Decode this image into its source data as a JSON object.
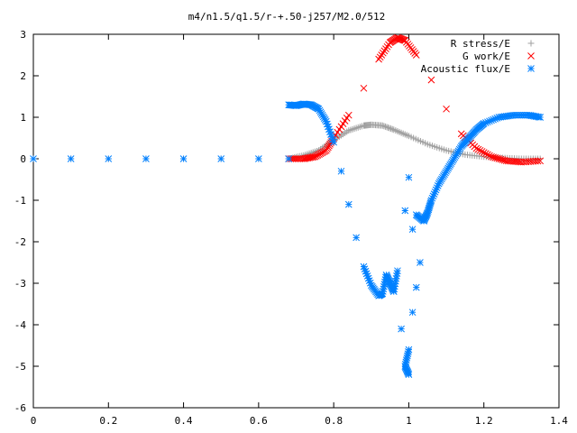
{
  "chart_data": {
    "type": "scatter",
    "title": "m4/n1.5/q1.5/r-+.50-j257/M2.0/512",
    "xlabel": "",
    "ylabel": "",
    "xlim": [
      0,
      1.4
    ],
    "ylim": [
      -6,
      3
    ],
    "grid": false,
    "legend_position": "top-right",
    "x_ticks": [
      "0",
      "0.2",
      "0.4",
      "0.6",
      "0.8",
      "1",
      "1.2",
      "1.4"
    ],
    "y_ticks": [
      "-6",
      "-5",
      "-4",
      "-3",
      "-2",
      "-1",
      "0",
      "1",
      "2",
      "3"
    ],
    "series": [
      {
        "name": "R stress/E",
        "marker": "+",
        "color": "#a0a0a0",
        "points": [
          [
            0.0,
            0
          ],
          [
            0.1,
            0
          ],
          [
            0.2,
            0
          ],
          [
            0.3,
            0
          ],
          [
            0.4,
            0
          ],
          [
            0.5,
            0
          ],
          [
            0.6,
            0
          ],
          [
            0.68,
            0.0
          ],
          [
            0.72,
            0.08
          ],
          [
            0.76,
            0.2
          ],
          [
            0.8,
            0.45
          ],
          [
            0.84,
            0.68
          ],
          [
            0.88,
            0.8
          ],
          [
            0.9,
            0.82
          ],
          [
            0.93,
            0.8
          ],
          [
            0.96,
            0.7
          ],
          [
            1.0,
            0.55
          ],
          [
            1.05,
            0.35
          ],
          [
            1.1,
            0.2
          ],
          [
            1.15,
            0.1
          ],
          [
            1.2,
            0.05
          ],
          [
            1.25,
            0.02
          ],
          [
            1.3,
            0.0
          ],
          [
            1.35,
            0.0
          ]
        ]
      },
      {
        "name": "G work/E",
        "marker": "x",
        "color": "#ff0000",
        "points": [
          [
            0.68,
            0.0
          ],
          [
            0.72,
            0.0
          ],
          [
            0.75,
            0.05
          ],
          [
            0.78,
            0.2
          ],
          [
            0.8,
            0.5
          ],
          [
            0.84,
            1.05
          ],
          [
            0.88,
            1.7
          ],
          [
            0.92,
            2.4
          ],
          [
            0.95,
            2.8
          ],
          [
            0.97,
            2.92
          ],
          [
            0.99,
            2.85
          ],
          [
            1.02,
            2.5
          ],
          [
            1.06,
            1.9
          ],
          [
            1.1,
            1.2
          ],
          [
            1.14,
            0.6
          ],
          [
            1.18,
            0.25
          ],
          [
            1.22,
            0.05
          ],
          [
            1.26,
            -0.05
          ],
          [
            1.3,
            -0.08
          ],
          [
            1.35,
            -0.05
          ]
        ]
      },
      {
        "name": "Acoustic flux/E",
        "marker": "*",
        "color": "#0080ff",
        "points": [
          [
            0.0,
            0
          ],
          [
            0.1,
            0
          ],
          [
            0.2,
            0
          ],
          [
            0.3,
            0
          ],
          [
            0.4,
            0
          ],
          [
            0.5,
            0
          ],
          [
            0.6,
            0
          ],
          [
            0.68,
            0.0
          ],
          [
            0.68,
            1.3
          ],
          [
            0.7,
            1.28
          ],
          [
            0.72,
            1.32
          ],
          [
            0.74,
            1.3
          ],
          [
            0.76,
            1.2
          ],
          [
            0.78,
            0.9
          ],
          [
            0.8,
            0.4
          ],
          [
            0.82,
            -0.3
          ],
          [
            0.84,
            -1.1
          ],
          [
            0.86,
            -1.9
          ],
          [
            0.88,
            -2.6
          ],
          [
            0.9,
            -3.05
          ],
          [
            0.92,
            -3.3
          ],
          [
            0.93,
            -3.25
          ],
          [
            0.94,
            -2.8
          ],
          [
            0.95,
            -3.0
          ],
          [
            0.96,
            -3.2
          ],
          [
            0.97,
            -2.7
          ],
          [
            0.98,
            -4.1
          ],
          [
            0.99,
            -1.25
          ],
          [
            1.0,
            -0.45
          ],
          [
            1.0,
            -5.2
          ],
          [
            0.99,
            -5.0
          ],
          [
            1.0,
            -4.6
          ],
          [
            1.01,
            -3.7
          ],
          [
            1.01,
            -1.7
          ],
          [
            1.02,
            -3.1
          ],
          [
            1.03,
            -2.5
          ],
          [
            1.02,
            -1.35
          ],
          [
            1.04,
            -1.5
          ],
          [
            1.05,
            -1.3
          ],
          [
            1.06,
            -1.0
          ],
          [
            1.08,
            -0.6
          ],
          [
            1.1,
            -0.3
          ],
          [
            1.12,
            0.0
          ],
          [
            1.14,
            0.3
          ],
          [
            1.16,
            0.5
          ],
          [
            1.18,
            0.7
          ],
          [
            1.2,
            0.85
          ],
          [
            1.24,
            1.0
          ],
          [
            1.28,
            1.05
          ],
          [
            1.32,
            1.05
          ],
          [
            1.35,
            1.0
          ]
        ]
      }
    ]
  }
}
